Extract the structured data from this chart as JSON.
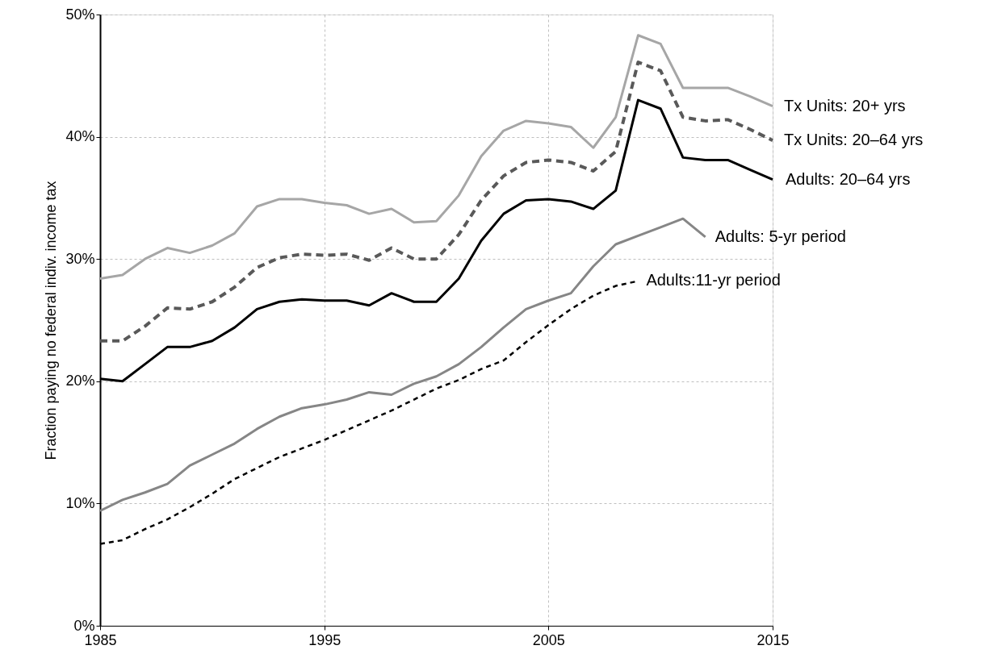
{
  "chart_data": {
    "type": "line",
    "ylabel": "Fraction paying no federal indiv. income tax",
    "x": [
      1985,
      1986,
      1987,
      1988,
      1989,
      1990,
      1991,
      1992,
      1993,
      1994,
      1995,
      1996,
      1997,
      1998,
      1999,
      2000,
      2001,
      2002,
      2003,
      2004,
      2005,
      2006,
      2007,
      2008,
      2009,
      2010,
      2011,
      2012,
      2013,
      2014,
      2015
    ],
    "xlim": [
      1985,
      2015
    ],
    "xticks": [
      1985,
      1995,
      2005,
      2015
    ],
    "ylim": [
      0,
      50
    ],
    "yticks": [
      {
        "value": 0,
        "label": "0%"
      },
      {
        "value": 10,
        "label": "10%"
      },
      {
        "value": 20,
        "label": "20%"
      },
      {
        "value": 30,
        "label": "30%"
      },
      {
        "value": 40,
        "label": "40%"
      },
      {
        "value": 50,
        "label": "50%"
      }
    ],
    "grid": true,
    "marker": "none",
    "series": [
      {
        "name": "Tx Units: 20+ yrs",
        "color": "#a6a6a6",
        "line_style": "solid",
        "values": [
          28.4,
          28.7,
          30.0,
          30.9,
          30.5,
          31.1,
          32.1,
          34.3,
          34.9,
          34.9,
          34.6,
          34.4,
          33.7,
          34.1,
          33.0,
          33.1,
          35.2,
          38.4,
          40.5,
          41.3,
          41.1,
          40.8,
          39.1,
          41.6,
          48.3,
          47.6,
          44.0,
          44.0,
          44.0,
          43.3,
          42.5
        ]
      },
      {
        "name": "Tx Units: 20–64 yrs",
        "color": "#595959",
        "line_style": "dashed",
        "values": [
          23.3,
          23.3,
          24.5,
          26.0,
          25.9,
          26.5,
          27.7,
          29.3,
          30.1,
          30.4,
          30.3,
          30.4,
          29.9,
          30.9,
          30.0,
          30.0,
          32.0,
          34.8,
          36.8,
          37.9,
          38.1,
          37.9,
          37.2,
          38.8,
          46.1,
          45.4,
          41.6,
          41.3,
          41.4,
          40.6,
          39.7
        ]
      },
      {
        "name": "Adults: 20–64 yrs",
        "color": "#000000",
        "line_style": "solid",
        "values": [
          20.2,
          20.0,
          21.4,
          22.8,
          22.8,
          23.3,
          24.4,
          25.9,
          26.5,
          26.7,
          26.6,
          26.6,
          26.2,
          27.2,
          26.5,
          26.5,
          28.4,
          31.5,
          33.7,
          34.8,
          34.9,
          34.7,
          34.1,
          35.6,
          43.0,
          42.3,
          38.3,
          38.1,
          38.1,
          37.3,
          36.5
        ]
      },
      {
        "name": "Adults: 5-yr period",
        "color": "#868686",
        "line_style": "solid",
        "values": [
          9.4,
          10.3,
          10.9,
          11.6,
          13.1,
          14.0,
          14.9,
          16.1,
          17.1,
          17.8,
          18.1,
          18.5,
          19.1,
          18.9,
          19.8,
          20.4,
          21.4,
          22.8,
          24.4,
          25.9,
          26.6,
          27.2,
          29.4,
          31.2,
          31.9,
          32.6,
          33.3,
          31.8,
          null,
          null,
          null
        ]
      },
      {
        "name": "Adults:11-yr period",
        "color": "#000000",
        "line_style": "dashed",
        "values": [
          6.7,
          7.0,
          7.9,
          8.7,
          9.7,
          10.8,
          12.0,
          12.9,
          13.8,
          14.5,
          15.2,
          16.0,
          16.8,
          17.6,
          18.5,
          19.4,
          20.1,
          21.0,
          21.7,
          23.2,
          24.6,
          25.9,
          27.0,
          27.8,
          28.2,
          null,
          null,
          null,
          null,
          null,
          null
        ]
      }
    ]
  }
}
